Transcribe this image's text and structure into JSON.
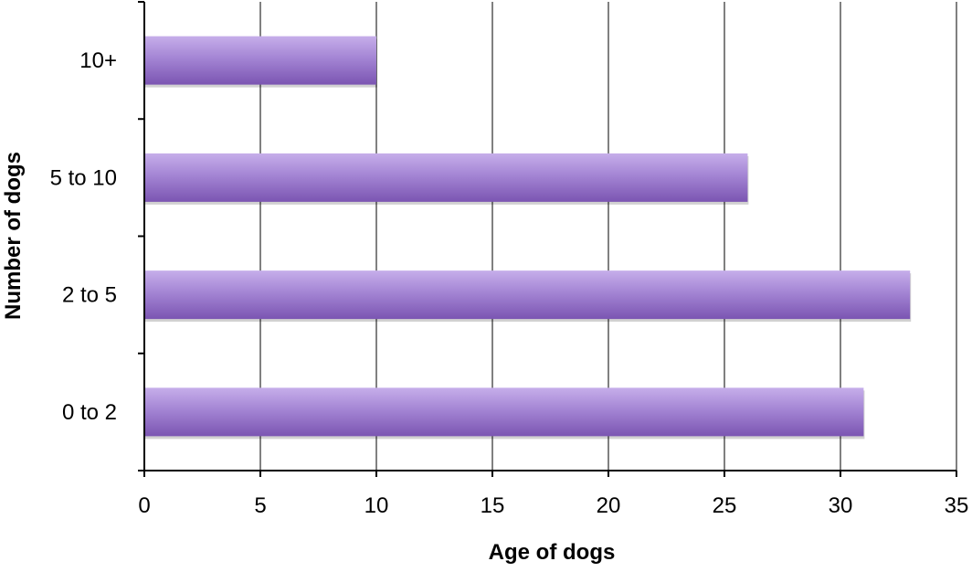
{
  "chart_data": {
    "type": "bar",
    "orientation": "horizontal",
    "title": "",
    "xlabel": "Age of dogs",
    "ylabel": "Number of dogs",
    "categories": [
      "0 to 2",
      "2 to 5",
      "5 to 10",
      "10+"
    ],
    "values": [
      31,
      33,
      26,
      10
    ],
    "xlim": [
      0,
      35
    ],
    "x_ticks": [
      0,
      5,
      10,
      15,
      20,
      25,
      30,
      35
    ],
    "grid": "vertical",
    "legend": "none"
  },
  "colors": {
    "bar_light": "#c6aeea",
    "bar_mid": "#a485d4",
    "bar_dark": "#7b55b2",
    "gridline": "#808080",
    "axis": "#000000"
  }
}
